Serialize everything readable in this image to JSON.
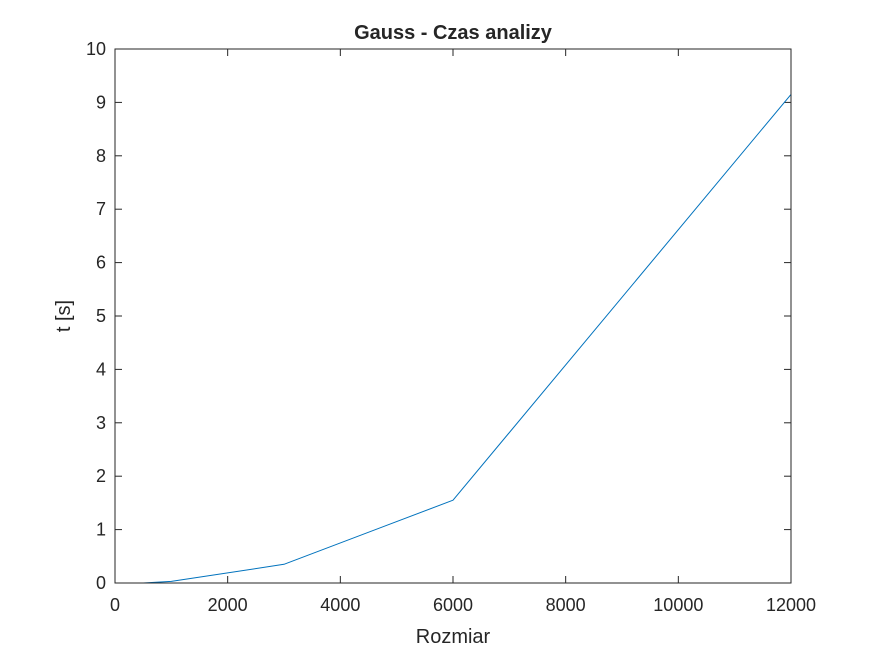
{
  "chart_data": {
    "type": "line",
    "title": "Gauss - Czas analizy",
    "xlabel": "Rozmiar",
    "ylabel": "t [s]",
    "xlim": [
      0,
      12000
    ],
    "ylim": [
      0,
      10
    ],
    "x_ticks": [
      0,
      2000,
      4000,
      6000,
      8000,
      10000,
      12000
    ],
    "y_ticks": [
      0,
      1,
      2,
      3,
      4,
      5,
      6,
      7,
      8,
      9,
      10
    ],
    "grid": false,
    "series": [
      {
        "color": "#0072BD",
        "x": [
          500,
          1000,
          3000,
          6000,
          12000
        ],
        "y": [
          0.0,
          0.03,
          0.35,
          1.55,
          9.15
        ]
      }
    ]
  }
}
